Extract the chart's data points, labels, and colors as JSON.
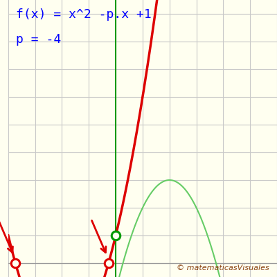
{
  "p": -4,
  "title_line1": "f(x) = x^2 -p.x +1",
  "title_line2": "p = -4",
  "bg_color": "#fffff0",
  "grid_color": "#c8c8c8",
  "axis_color": "#999999",
  "red_color": "#dd0000",
  "green_axis_color": "#009900",
  "green_curve_color": "#66cc66",
  "blue_color": "#0033cc",
  "watermark": "matematicasVisuales",
  "watermark_color": "#8B4513",
  "xlim": [
    -3.0,
    5.0
  ],
  "ylim": [
    0.2,
    9.0
  ],
  "figsize": [
    4.0,
    4.0
  ],
  "dpi": 100,
  "title_fontsize": 13,
  "watermark_fontsize": 8
}
